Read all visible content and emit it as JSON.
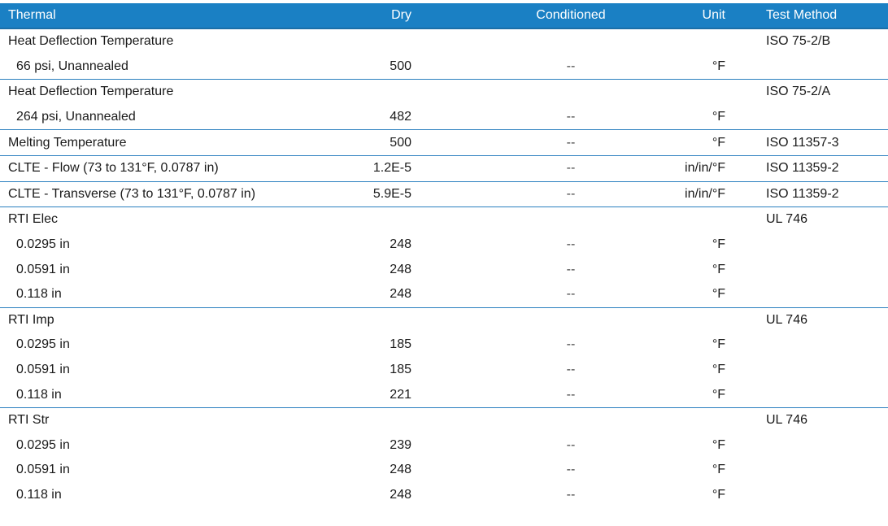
{
  "header": {
    "property": "Thermal",
    "dry": "Dry",
    "conditioned": "Conditioned",
    "unit": "Unit",
    "test_method": "Test Method"
  },
  "rows": [
    {
      "property": "Heat Deflection Temperature",
      "dry": "",
      "conditioned": "",
      "unit": "",
      "method": "ISO 75-2/B",
      "sub": false,
      "group_start": false
    },
    {
      "property": "66 psi, Unannealed",
      "dry": "500",
      "conditioned": "--",
      "unit": "°F",
      "method": "",
      "sub": true,
      "group_start": false
    },
    {
      "property": "Heat Deflection Temperature",
      "dry": "",
      "conditioned": "",
      "unit": "",
      "method": "ISO 75-2/A",
      "sub": false,
      "group_start": true
    },
    {
      "property": "264 psi, Unannealed",
      "dry": "482",
      "conditioned": "--",
      "unit": "°F",
      "method": "",
      "sub": true,
      "group_start": false
    },
    {
      "property": "Melting Temperature",
      "dry": "500",
      "conditioned": "--",
      "unit": "°F",
      "method": "ISO 11357-3",
      "sub": false,
      "group_start": true
    },
    {
      "property": "CLTE - Flow (73 to 131°F, 0.0787 in)",
      "dry": "1.2E-5",
      "conditioned": "--",
      "unit": "in/in/°F",
      "method": "ISO 11359-2",
      "sub": false,
      "group_start": true
    },
    {
      "property": "CLTE - Transverse (73 to 131°F, 0.0787 in)",
      "dry": "5.9E-5",
      "conditioned": "--",
      "unit": "in/in/°F",
      "method": "ISO 11359-2",
      "sub": false,
      "group_start": true
    },
    {
      "property": "RTI Elec",
      "dry": "",
      "conditioned": "",
      "unit": "",
      "method": "UL 746",
      "sub": false,
      "group_start": true
    },
    {
      "property": "0.0295 in",
      "dry": "248",
      "conditioned": "--",
      "unit": "°F",
      "method": "",
      "sub": true,
      "group_start": false
    },
    {
      "property": "0.0591 in",
      "dry": "248",
      "conditioned": "--",
      "unit": "°F",
      "method": "",
      "sub": true,
      "group_start": false
    },
    {
      "property": "0.118 in",
      "dry": "248",
      "conditioned": "--",
      "unit": "°F",
      "method": "",
      "sub": true,
      "group_start": false
    },
    {
      "property": "RTI Imp",
      "dry": "",
      "conditioned": "",
      "unit": "",
      "method": "UL 746",
      "sub": false,
      "group_start": true
    },
    {
      "property": "0.0295 in",
      "dry": "185",
      "conditioned": "--",
      "unit": "°F",
      "method": "",
      "sub": true,
      "group_start": false
    },
    {
      "property": "0.0591 in",
      "dry": "185",
      "conditioned": "--",
      "unit": "°F",
      "method": "",
      "sub": true,
      "group_start": false
    },
    {
      "property": "0.118 in",
      "dry": "221",
      "conditioned": "--",
      "unit": "°F",
      "method": "",
      "sub": true,
      "group_start": false
    },
    {
      "property": "RTI Str",
      "dry": "",
      "conditioned": "",
      "unit": "",
      "method": "UL 746",
      "sub": false,
      "group_start": true
    },
    {
      "property": "0.0295 in",
      "dry": "239",
      "conditioned": "--",
      "unit": "°F",
      "method": "",
      "sub": true,
      "group_start": false
    },
    {
      "property": "0.0591 in",
      "dry": "248",
      "conditioned": "--",
      "unit": "°F",
      "method": "",
      "sub": true,
      "group_start": false
    },
    {
      "property": "0.118 in",
      "dry": "248",
      "conditioned": "--",
      "unit": "°F",
      "method": "",
      "sub": true,
      "group_start": false
    }
  ],
  "colors": {
    "header_bg": "#1a80c4",
    "header_text": "#ffffff",
    "divider": "#2a7fbf"
  }
}
